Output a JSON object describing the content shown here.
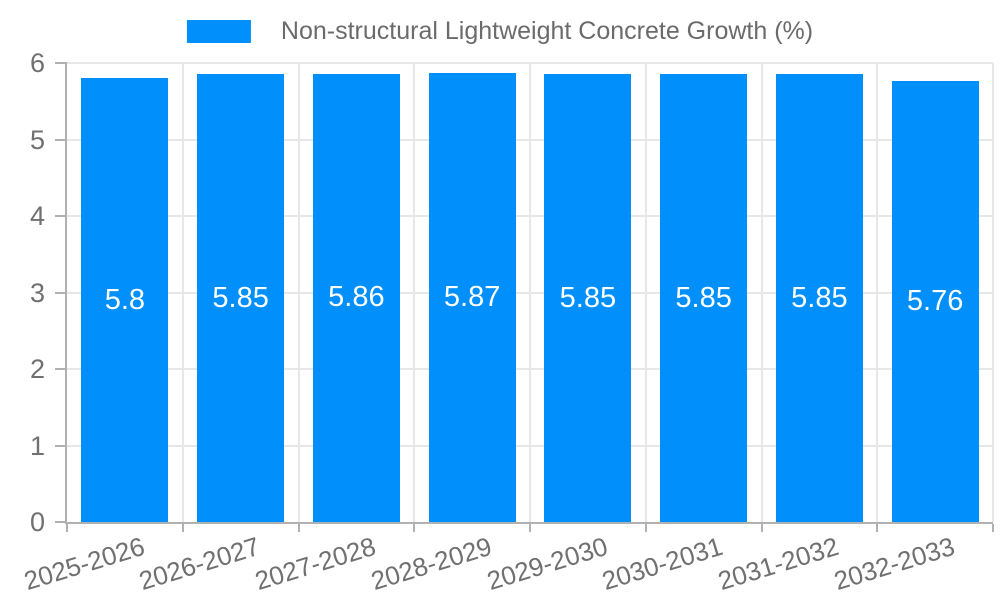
{
  "chart_data": {
    "type": "bar",
    "title": "Non-structural Lightweight Concrete Growth (%)",
    "legend": {
      "label": "Non-structural Lightweight Concrete Growth (%)",
      "position": "top",
      "marker_color": "#008FFB"
    },
    "categories": [
      "2025-2026",
      "2026-2027",
      "2027-2028",
      "2028-2029",
      "2029-2030",
      "2030-2031",
      "2031-2032",
      "2032-2033"
    ],
    "series": [
      {
        "name": "Non-structural Lightweight Concrete Growth (%)",
        "values": [
          5.8,
          5.85,
          5.86,
          5.87,
          5.85,
          5.85,
          5.85,
          5.76
        ]
      }
    ],
    "data_labels": [
      "5.8",
      "5.85",
      "5.86",
      "5.87",
      "5.85",
      "5.85",
      "5.85",
      "5.76"
    ],
    "xlabel": "",
    "ylabel": "",
    "ylim": [
      0,
      6
    ],
    "yticks": [
      0,
      1,
      2,
      3,
      4,
      5,
      6
    ],
    "grid": true,
    "bar_corner": "square",
    "colors": {
      "bar": "#008FFB",
      "grid": "#e7e7e7",
      "axis": "#b1b1b1",
      "axis_label": "#707070",
      "legend_label": "#6b6b6b",
      "data_label": "#ffffff",
      "background": "#ffffff"
    }
  }
}
